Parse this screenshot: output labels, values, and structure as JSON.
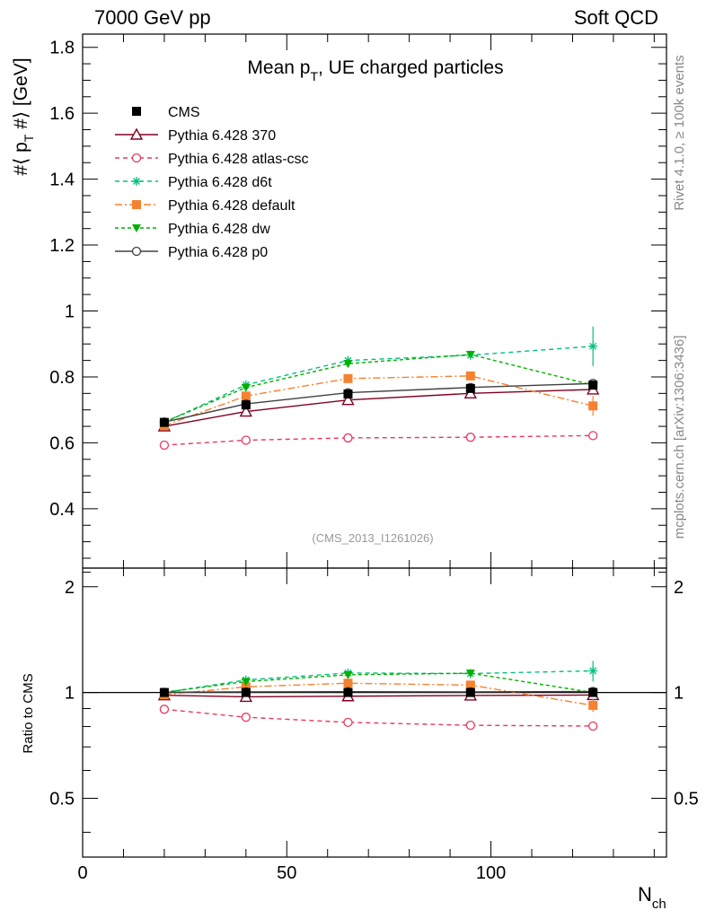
{
  "header": {
    "left": "7000 GeV pp",
    "right": "Soft QCD"
  },
  "side_labels": {
    "rivet": "Rivet 4.1.0, ≥ 100k events",
    "mcplots": "mcplots.cern.ch [arXiv:1306:3436]"
  },
  "chart_data": {
    "type": "line",
    "title_main": "Mean p",
    "title_sub": "T",
    "title_rest": ", UE charged particles",
    "ylabel_prefix": "#⟨ p",
    "ylabel_sub": "T",
    "ylabel_suffix": " #⟩ [GeV]",
    "xlabel_main": "N",
    "xlabel_sub": "ch",
    "watermark": "(CMS_2013_I1261026)",
    "xlim": [
      0,
      143
    ],
    "ylim": [
      0.22,
      1.84
    ],
    "x_ticks": [
      "0",
      "50",
      "100"
    ],
    "y_ticks": [
      "0.4",
      "0.6",
      "0.8",
      "1",
      "1.2",
      "1.4",
      "1.6",
      "1.8"
    ],
    "x": [
      20,
      40,
      65,
      95,
      125
    ],
    "series": [
      {
        "name": "CMS",
        "color": "#000000",
        "marker": "filled-square",
        "dash": "none",
        "values": [
          0.662,
          0.715,
          0.748,
          0.765,
          0.775
        ],
        "errors": [
          0.005,
          0.005,
          0.005,
          0.006,
          0.01
        ]
      },
      {
        "name": "Pythia 6.428 370",
        "color": "#800020",
        "marker": "open-triangle",
        "dash": "solid",
        "values": [
          0.65,
          0.695,
          0.73,
          0.75,
          0.762
        ]
      },
      {
        "name": "Pythia 6.428 atlas-csc",
        "color": "#e8385b",
        "marker": "open-circle",
        "dash": "dashed",
        "values": [
          0.593,
          0.608,
          0.615,
          0.617,
          0.622
        ]
      },
      {
        "name": "Pythia 6.428 d6t",
        "color": "#00c080",
        "marker": "asterisk",
        "dash": "dashed",
        "values": [
          0.662,
          0.776,
          0.85,
          0.866,
          0.893
        ],
        "errors": [
          0,
          0,
          0,
          0,
          0.06
        ]
      },
      {
        "name": "Pythia 6.428 default",
        "color": "#f58230",
        "marker": "filled-square",
        "dash": "dashdot",
        "values": [
          0.652,
          0.742,
          0.795,
          0.803,
          0.712
        ],
        "errors": [
          0,
          0,
          0,
          0,
          0.03
        ]
      },
      {
        "name": "Pythia 6.428 dw",
        "color": "#00b000",
        "marker": "filled-triangle-down",
        "dash": "dotted",
        "values": [
          0.663,
          0.768,
          0.84,
          0.868,
          0.775
        ]
      },
      {
        "name": "Pythia 6.428 p0",
        "color": "#404040",
        "marker": "open-circle",
        "dash": "solid",
        "values": [
          0.663,
          0.718,
          0.752,
          0.768,
          0.78
        ]
      }
    ],
    "ratio_panel": {
      "ylabel": "Ratio to CMS",
      "ylim": [
        0.34,
        2.26
      ],
      "y_ticks_left": [
        "0.5",
        "1",
        "2"
      ],
      "y_ticks_right": [
        "0.5",
        "1",
        "2"
      ]
    }
  }
}
